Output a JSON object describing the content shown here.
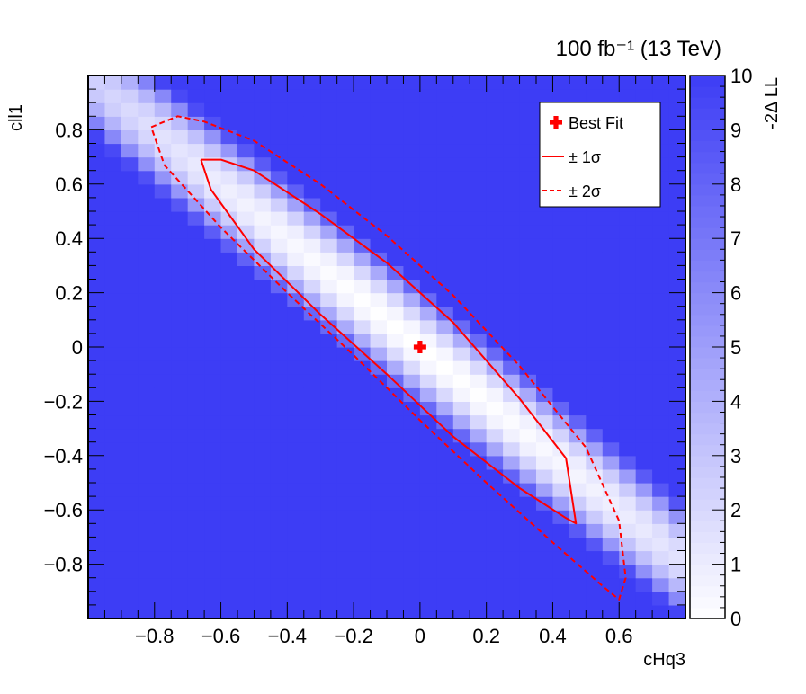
{
  "chart_data": {
    "type": "heatmap",
    "title": "100 fb⁻¹   (13 TeV)",
    "xlabel": "cHq3",
    "ylabel": "cll1",
    "xlim": [
      -1.0,
      0.8
    ],
    "ylim": [
      -1.0,
      1.0
    ],
    "x_ticks": [
      {
        "value": -0.8,
        "label": "−0.8"
      },
      {
        "value": -0.6,
        "label": "−0.6"
      },
      {
        "value": -0.4,
        "label": "−0.4"
      },
      {
        "value": -0.2,
        "label": "−0.2"
      },
      {
        "value": 0.0,
        "label": "0"
      },
      {
        "value": 0.2,
        "label": "0.2"
      },
      {
        "value": 0.4,
        "label": "0.4"
      },
      {
        "value": 0.6,
        "label": "0.6"
      }
    ],
    "y_ticks": [
      {
        "value": 0.8,
        "label": "0.8"
      },
      {
        "value": 0.6,
        "label": "0.6"
      },
      {
        "value": 0.4,
        "label": "0.4"
      },
      {
        "value": 0.2,
        "label": "0.2"
      },
      {
        "value": 0.0,
        "label": "0"
      },
      {
        "value": -0.2,
        "label": "−0.2"
      },
      {
        "value": -0.4,
        "label": "−0.4"
      },
      {
        "value": -0.6,
        "label": "−0.6"
      },
      {
        "value": -0.8,
        "label": "−0.8"
      }
    ],
    "colorbar": {
      "label": "-2Δ LL",
      "range": [
        0,
        10
      ],
      "ticks": [
        {
          "value": 0,
          "label": "0"
        },
        {
          "value": 1,
          "label": "1"
        },
        {
          "value": 2,
          "label": "2"
        },
        {
          "value": 3,
          "label": "3"
        },
        {
          "value": 4,
          "label": "4"
        },
        {
          "value": 5,
          "label": "5"
        },
        {
          "value": 6,
          "label": "6"
        },
        {
          "value": 7,
          "label": "7"
        },
        {
          "value": 8,
          "label": "8"
        },
        {
          "value": 9,
          "label": "9"
        },
        {
          "value": 10,
          "label": "10"
        }
      ],
      "low_color": "#ffffff",
      "high_color": "#3d3df5"
    },
    "grid": {
      "x_start": -1.0,
      "x_step": 0.05,
      "nx": 36,
      "y_start": -1.0,
      "y_step": 0.05,
      "ny": 40
    },
    "likelihood_surface": {
      "direction": [
        0.707,
        -0.707
      ],
      "long_axis_1sigma": 0.89,
      "short_axis_1sigma": 0.051
    },
    "best_fit": {
      "x": 0.0,
      "y": 0.0,
      "color": "#ff0000"
    },
    "contour_1sigma": {
      "style": "solid",
      "color": "#ff0000",
      "points": [
        [
          -0.66,
          0.69
        ],
        [
          -0.6,
          0.69
        ],
        [
          -0.5,
          0.65
        ],
        [
          -0.3,
          0.49
        ],
        [
          -0.1,
          0.31
        ],
        [
          0.1,
          0.09
        ],
        [
          0.3,
          -0.19
        ],
        [
          0.44,
          -0.41
        ],
        [
          0.47,
          -0.65
        ],
        [
          0.44,
          -0.63
        ],
        [
          0.3,
          -0.52
        ],
        [
          0.1,
          -0.33
        ],
        [
          -0.1,
          -0.1
        ],
        [
          -0.3,
          0.12
        ],
        [
          -0.5,
          0.36
        ],
        [
          -0.63,
          0.58
        ],
        [
          -0.66,
          0.69
        ]
      ]
    },
    "contour_2sigma": {
      "style": "dashed",
      "color": "#ff0000",
      "points": [
        [
          -0.81,
          0.81
        ],
        [
          -0.73,
          0.85
        ],
        [
          -0.65,
          0.83
        ],
        [
          -0.5,
          0.76
        ],
        [
          -0.3,
          0.6
        ],
        [
          -0.1,
          0.41
        ],
        [
          0.1,
          0.19
        ],
        [
          0.3,
          -0.07
        ],
        [
          0.5,
          -0.37
        ],
        [
          0.6,
          -0.64
        ],
        [
          0.62,
          -0.85
        ],
        [
          0.6,
          -0.93
        ],
        [
          0.55,
          -0.88
        ],
        [
          0.4,
          -0.72
        ],
        [
          0.2,
          -0.5
        ],
        [
          0.0,
          -0.27
        ],
        [
          -0.2,
          -0.03
        ],
        [
          -0.4,
          0.2
        ],
        [
          -0.6,
          0.44
        ],
        [
          -0.77,
          0.67
        ],
        [
          -0.81,
          0.81
        ]
      ]
    },
    "legend": {
      "position": "top-right",
      "entries": [
        {
          "label": "Best Fit",
          "kind": "marker"
        },
        {
          "label": "± 1σ",
          "kind": "solid-line"
        },
        {
          "label": "± 2σ",
          "kind": "dashed-line"
        }
      ]
    }
  }
}
